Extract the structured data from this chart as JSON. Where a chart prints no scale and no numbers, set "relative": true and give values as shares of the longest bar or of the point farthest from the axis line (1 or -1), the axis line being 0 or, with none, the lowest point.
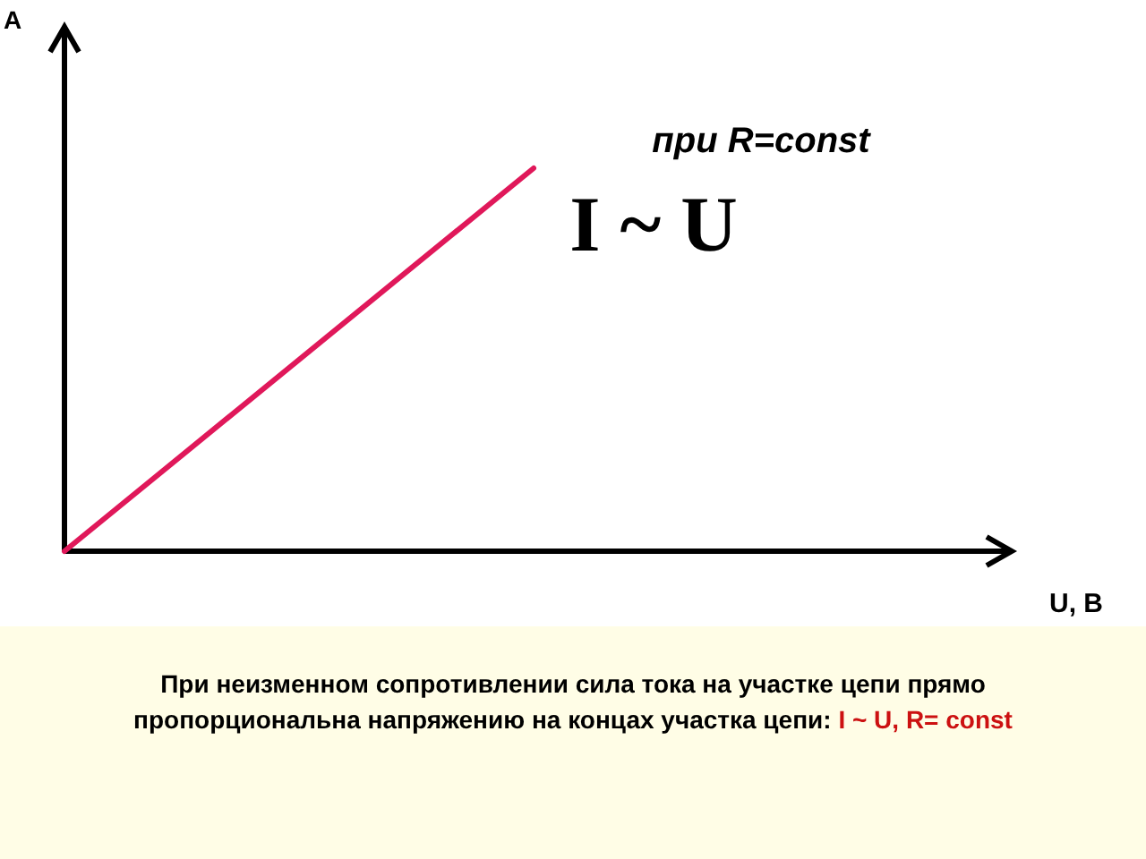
{
  "chart_data": {
    "type": "line",
    "relative": true,
    "xlabel": "U, B",
    "categories": [
      null,
      null
    ],
    "series": [
      {
        "color": "#e0185a",
        "values": [
          0,
          1
        ]
      }
    ],
    "grid": false,
    "marker": "none",
    "line_style": "solid",
    "annotations": [
      "A",
      "при R=const",
      "I ~ U",
      "При неизменном сопротивлении сила тока на участке цепи прямо пропорциональна напряжению на концах участка цепи:",
      "I ~ U, R= const"
    ]
  }
}
